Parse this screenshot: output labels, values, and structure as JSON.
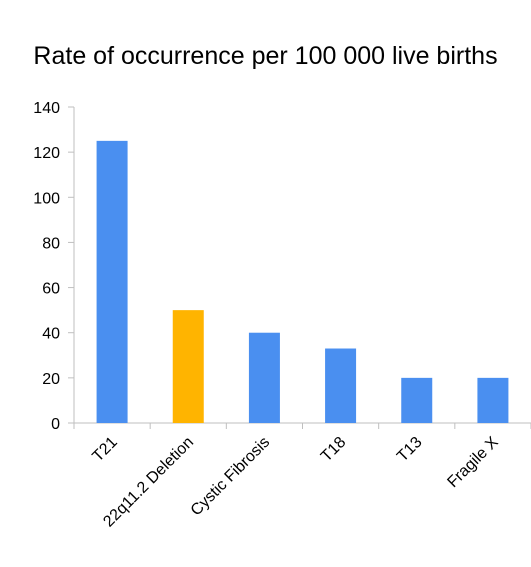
{
  "chart_data": {
    "type": "bar",
    "title": "Rate of occurrence per 100 000 live births",
    "xlabel": "",
    "ylabel": "",
    "categories": [
      "T21",
      "22q11.2 Deletion",
      "Cystic Fibrosis",
      "T18",
      "T13",
      "Fragile X"
    ],
    "values": [
      125,
      50,
      40,
      33,
      20,
      20
    ],
    "ylim": [
      0,
      140
    ],
    "yticks": [
      0,
      20,
      40,
      60,
      80,
      100,
      120,
      140
    ],
    "grid": false,
    "legend": "none",
    "colors": {
      "default_bar": "#4a8ff0",
      "highlight_bar": "#ffb400",
      "axis": "#bfbfbf"
    },
    "highlight_category": "22q11.2 Deletion"
  }
}
